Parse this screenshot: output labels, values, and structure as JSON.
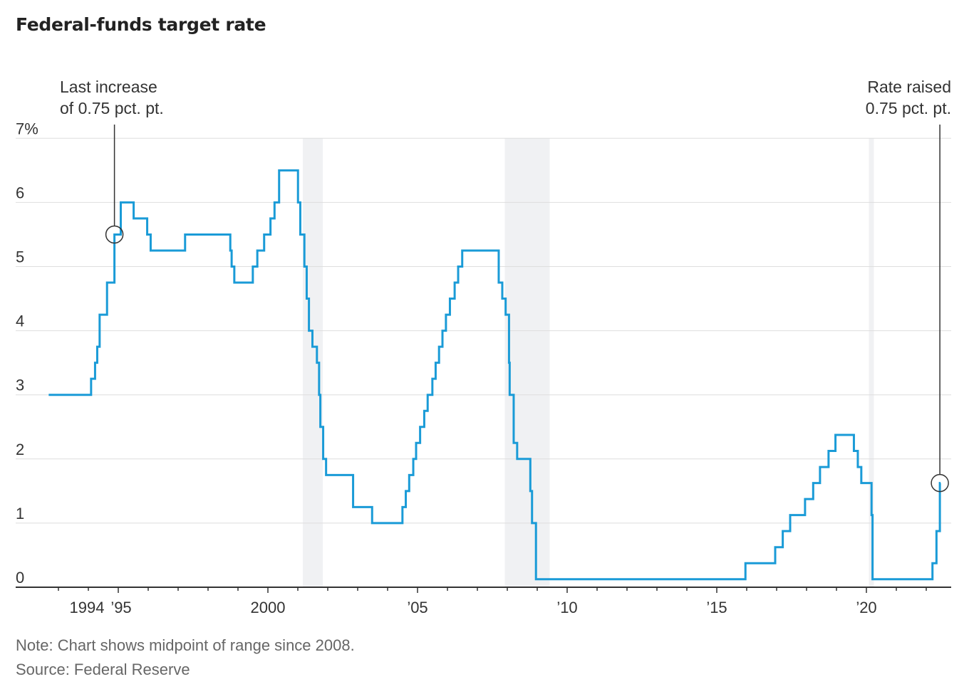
{
  "chart_data": {
    "type": "line",
    "title": "Federal-funds target rate",
    "note": "Note: Chart shows midpoint of range since 2008.",
    "source": "Source: Federal Reserve",
    "ylim": [
      0,
      7
    ],
    "yticks": [
      0,
      1,
      2,
      3,
      4,
      5,
      6,
      7
    ],
    "ytick_labels": [
      "0",
      "1",
      "2",
      "3",
      "4",
      "5",
      "6",
      "7%"
    ],
    "xticks": [
      1994,
      1995,
      2000,
      2005,
      2010,
      2015,
      2020
    ],
    "xtick_labels": [
      "1994",
      "’95",
      "2000",
      "’05",
      "’10",
      "’15",
      "’20"
    ],
    "grid": true,
    "step": true,
    "color": "#1a9bd7",
    "recession_color": "#f0f1f3",
    "recessions": [
      [
        "2001-03",
        "2001-11"
      ],
      [
        "2007-12",
        "2009-06"
      ],
      [
        "2020-02",
        "2020-04"
      ]
    ],
    "series": [
      {
        "values": [
          [
            "1992-09-04",
            3.0
          ],
          [
            "1994-02-04",
            3.25
          ],
          [
            "1994-03-22",
            3.5
          ],
          [
            "1994-04-18",
            3.75
          ],
          [
            "1994-05-17",
            4.25
          ],
          [
            "1994-08-16",
            4.75
          ],
          [
            "1994-11-15",
            5.5
          ],
          [
            "1995-02-01",
            6.0
          ],
          [
            "1995-07-06",
            5.75
          ],
          [
            "1995-12-19",
            5.5
          ],
          [
            "1996-01-31",
            5.25
          ],
          [
            "1997-03-25",
            5.5
          ],
          [
            "1998-09-29",
            5.25
          ],
          [
            "1998-10-15",
            5.0
          ],
          [
            "1998-11-17",
            4.75
          ],
          [
            "1999-06-30",
            5.0
          ],
          [
            "1999-08-24",
            5.25
          ],
          [
            "1999-11-16",
            5.5
          ],
          [
            "2000-02-02",
            5.75
          ],
          [
            "2000-03-21",
            6.0
          ],
          [
            "2000-05-16",
            6.5
          ],
          [
            "2001-01-03",
            6.0
          ],
          [
            "2001-01-31",
            5.5
          ],
          [
            "2001-03-20",
            5.0
          ],
          [
            "2001-04-18",
            4.5
          ],
          [
            "2001-05-15",
            4.0
          ],
          [
            "2001-06-27",
            3.75
          ],
          [
            "2001-08-21",
            3.5
          ],
          [
            "2001-09-17",
            3.0
          ],
          [
            "2001-10-02",
            2.5
          ],
          [
            "2001-11-06",
            2.0
          ],
          [
            "2001-12-11",
            1.75
          ],
          [
            "2002-11-06",
            1.25
          ],
          [
            "2003-06-25",
            1.0
          ],
          [
            "2004-06-30",
            1.25
          ],
          [
            "2004-08-10",
            1.5
          ],
          [
            "2004-09-21",
            1.75
          ],
          [
            "2004-11-10",
            2.0
          ],
          [
            "2004-12-14",
            2.25
          ],
          [
            "2005-02-02",
            2.5
          ],
          [
            "2005-03-22",
            2.75
          ],
          [
            "2005-05-03",
            3.0
          ],
          [
            "2005-06-30",
            3.25
          ],
          [
            "2005-08-09",
            3.5
          ],
          [
            "2005-09-20",
            3.75
          ],
          [
            "2005-11-01",
            4.0
          ],
          [
            "2005-12-13",
            4.25
          ],
          [
            "2006-01-31",
            4.5
          ],
          [
            "2006-03-28",
            4.75
          ],
          [
            "2006-05-10",
            5.0
          ],
          [
            "2006-06-29",
            5.25
          ],
          [
            "2007-09-18",
            4.75
          ],
          [
            "2007-10-31",
            4.5
          ],
          [
            "2007-12-11",
            4.25
          ],
          [
            "2008-01-22",
            3.5
          ],
          [
            "2008-01-30",
            3.0
          ],
          [
            "2008-03-18",
            2.25
          ],
          [
            "2008-04-30",
            2.0
          ],
          [
            "2008-10-08",
            1.5
          ],
          [
            "2008-10-29",
            1.0
          ],
          [
            "2008-12-16",
            0.125
          ],
          [
            "2015-12-16",
            0.375
          ],
          [
            "2016-12-14",
            0.625
          ],
          [
            "2017-03-15",
            0.875
          ],
          [
            "2017-06-14",
            1.125
          ],
          [
            "2017-12-13",
            1.375
          ],
          [
            "2018-03-21",
            1.625
          ],
          [
            "2018-06-13",
            1.875
          ],
          [
            "2018-09-26",
            2.125
          ],
          [
            "2018-12-19",
            2.375
          ],
          [
            "2019-07-31",
            2.125
          ],
          [
            "2019-09-18",
            1.875
          ],
          [
            "2019-10-30",
            1.625
          ],
          [
            "2020-03-03",
            1.125
          ],
          [
            "2020-03-15",
            0.125
          ],
          [
            "2022-03-16",
            0.375
          ],
          [
            "2022-05-04",
            0.875
          ],
          [
            "2022-06-15",
            1.625
          ]
        ]
      }
    ],
    "annotations": [
      {
        "lines": [
          "Last increase",
          "of 0.75 pct. pt."
        ],
        "date": "1994-11-15",
        "value": 5.5,
        "align": "left"
      },
      {
        "lines": [
          "Rate raised",
          "0.75 pct. pt."
        ],
        "date": "2022-06-15",
        "value": 1.625,
        "align": "right"
      }
    ]
  }
}
